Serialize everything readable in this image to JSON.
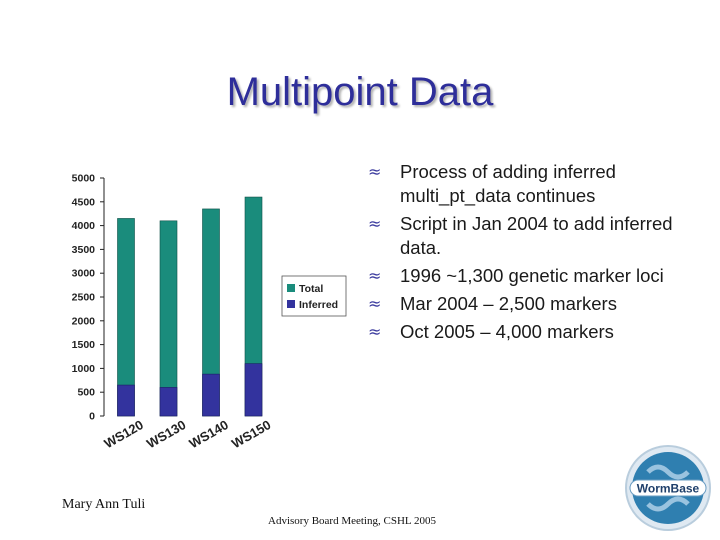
{
  "slide": {
    "title": "Multipoint Data",
    "bullets": [
      "Process of adding inferred multi_pt_data continues",
      "Script in Jan 2004 to add inferred data.",
      "1996 ~1,300 genetic marker loci",
      "Mar 2004 – 2,500 markers",
      "Oct 2005 – 4,000 markers"
    ],
    "bullet_glyph": "≈",
    "footer": {
      "author": "Mary Ann Tuli",
      "meeting": "Advisory Board Meeting, CSHL 2005"
    },
    "logo": {
      "text": "WormBase",
      "icon": "wormbase-logo-icon"
    }
  },
  "colors": {
    "title": "#2e2e9a",
    "total": "#1a8c7c",
    "inferred": "#33339e",
    "logo": "#2f7fb0"
  },
  "chart_data": {
    "type": "bar",
    "categories": [
      "WS120",
      "WS130",
      "WS140",
      "WS150"
    ],
    "series": [
      {
        "name": "Total",
        "values": [
          4150,
          4100,
          4350,
          4600
        ]
      },
      {
        "name": "Inferred",
        "values": [
          650,
          600,
          880,
          1100
        ]
      }
    ],
    "yticks": [
      0,
      500,
      1000,
      1500,
      2000,
      2500,
      3000,
      3500,
      4000,
      4500,
      5000
    ],
    "ylim": [
      0,
      5000
    ],
    "title": "",
    "xlabel": "",
    "ylabel": "",
    "grid": false,
    "legend": "right",
    "overlapping_bars": true
  }
}
